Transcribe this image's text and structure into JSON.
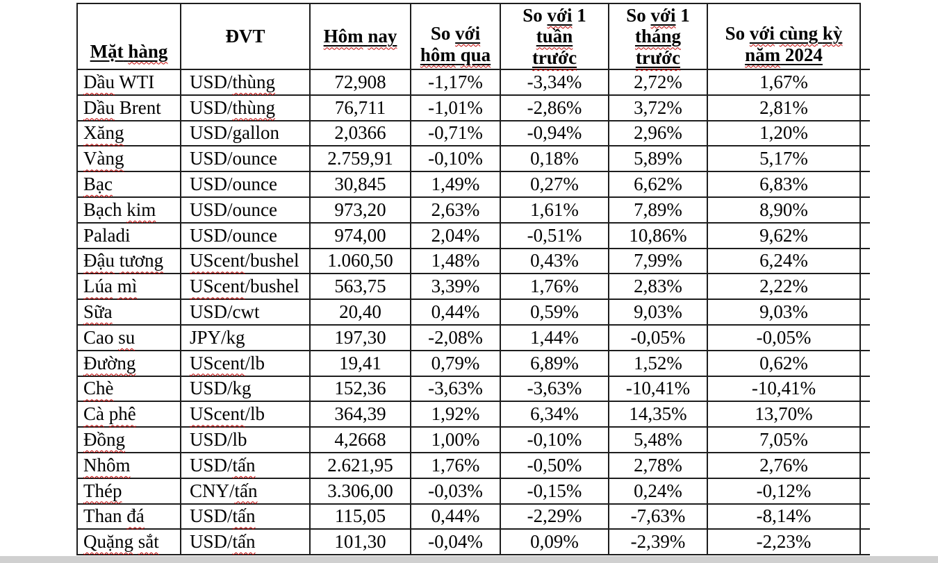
{
  "page": {
    "background": "#ffffff",
    "bottom_strip_color": "#d0d0d0",
    "table_border_color": "#1d1d1d",
    "squiggle_color": "#c00000",
    "text_color": "#000000"
  },
  "table": {
    "columns": [
      {
        "key": "commodity",
        "label": "Mặt hàng"
      },
      {
        "key": "unit",
        "label": "ĐVT"
      },
      {
        "key": "today",
        "label": "Hôm nay"
      },
      {
        "key": "vs_yesterday",
        "label": "So với hôm qua"
      },
      {
        "key": "vs_week",
        "label": "So với 1 tuần trước"
      },
      {
        "key": "vs_month",
        "label": "So với 1 tháng trước"
      },
      {
        "key": "vs_2024",
        "label": "So với cùng kỳ năm 2024"
      }
    ],
    "header_rich": [
      {
        "lines": [
          [
            {
              "t": "Mặt",
              "u": true
            },
            {
              "t": " ",
              "u": true
            },
            {
              "t": "hàng",
              "u": true,
              "w": true
            }
          ]
        ]
      },
      {
        "lines": [
          [
            {
              "t": "ĐVT"
            }
          ]
        ]
      },
      {
        "lines": [
          [
            {
              "t": "Hôm",
              "u": true,
              "w": true
            },
            {
              "t": " ",
              "u": true
            },
            {
              "t": "nay",
              "u": true,
              "w": true
            }
          ]
        ]
      },
      {
        "lines": [
          [
            {
              "t": "So "
            },
            {
              "t": "với",
              "u": true,
              "w": true
            }
          ],
          [
            {
              "t": "hôm",
              "u": true,
              "w": true
            },
            {
              "t": " ",
              "u": true
            },
            {
              "t": "qua",
              "u": true,
              "w": true
            }
          ]
        ]
      },
      {
        "lines": [
          [
            {
              "t": "So "
            },
            {
              "t": "với",
              "u": true,
              "w": true
            },
            {
              "t": " 1"
            }
          ],
          [
            {
              "t": "tuần",
              "u": true,
              "w": true
            }
          ],
          [
            {
              "t": "trước",
              "u": true,
              "w": true
            }
          ]
        ]
      },
      {
        "lines": [
          [
            {
              "t": "So "
            },
            {
              "t": "với",
              "u": true,
              "w": true
            },
            {
              "t": " 1"
            }
          ],
          [
            {
              "t": "tháng",
              "u": true,
              "w": true
            }
          ],
          [
            {
              "t": "trước",
              "u": true,
              "w": true
            }
          ]
        ]
      },
      {
        "lines": [
          [
            {
              "t": "So "
            },
            {
              "t": "với",
              "u": true,
              "w": true
            },
            {
              "t": " ",
              "u": true
            },
            {
              "t": "cùng",
              "u": true,
              "w": true
            },
            {
              "t": " ",
              "u": true
            },
            {
              "t": "kỳ",
              "u": true,
              "w": true
            }
          ],
          [
            {
              "t": "năm",
              "u": true,
              "w": true
            },
            {
              "t": " 2024",
              "u": true
            }
          ]
        ]
      }
    ],
    "rows": [
      {
        "c": "Dầu WTI",
        "cw": [
          "Dầu"
        ],
        "u": "USD/thùng",
        "uw": [
          "thùng"
        ],
        "v": [
          "72,908",
          "-1,17%",
          "-3,34%",
          "2,72%",
          "1,67%"
        ]
      },
      {
        "c": "Dầu Brent",
        "cw": [
          "Dầu"
        ],
        "u": "USD/thùng",
        "uw": [
          "thùng"
        ],
        "v": [
          "76,711",
          "-1,01%",
          "-2,86%",
          "3,72%",
          "2,81%"
        ]
      },
      {
        "c": "Xăng",
        "cw": [
          "Xăng"
        ],
        "u": "USD/gallon",
        "uw": [],
        "v": [
          "2,0366",
          "-0,71%",
          "-0,94%",
          "2,96%",
          "1,20%"
        ]
      },
      {
        "c": "Vàng",
        "cw": [
          "Vàng"
        ],
        "u": "USD/ounce",
        "uw": [],
        "v": [
          "2.759,91",
          "-0,10%",
          "0,18%",
          "5,89%",
          "5,17%"
        ]
      },
      {
        "c": "Bạc",
        "cw": [
          "Bạc"
        ],
        "u": "USD/ounce",
        "uw": [],
        "v": [
          "30,845",
          "1,49%",
          "0,27%",
          "6,62%",
          "6,83%"
        ]
      },
      {
        "c": "Bạch kim",
        "cw": [
          "kim"
        ],
        "u": "USD/ounce",
        "uw": [],
        "v": [
          "973,20",
          "2,63%",
          "1,61%",
          "7,89%",
          "8,90%"
        ]
      },
      {
        "c": "Paladi",
        "cw": [],
        "u": "USD/ounce",
        "uw": [],
        "v": [
          "974,00",
          "2,04%",
          "-0,51%",
          "10,86%",
          "9,62%"
        ]
      },
      {
        "c": "Đậu tương",
        "cw": [
          "Đậu",
          "tương"
        ],
        "u": "UScent/bushel",
        "uw": [
          "UScent"
        ],
        "v": [
          "1.060,50",
          "1,48%",
          "0,43%",
          "7,99%",
          "6,24%"
        ]
      },
      {
        "c": "Lúa mì",
        "cw": [
          "Lúa",
          "mì"
        ],
        "u": "UScent/bushel",
        "uw": [
          "UScent"
        ],
        "v": [
          "563,75",
          "3,39%",
          "1,76%",
          "2,83%",
          "2,22%"
        ]
      },
      {
        "c": "Sữa",
        "cw": [
          "Sữa"
        ],
        "u": "USD/cwt",
        "uw": [],
        "v": [
          "20,40",
          "0,44%",
          "0,59%",
          "9,03%",
          "9,03%"
        ]
      },
      {
        "c": "Cao su",
        "cw": [
          "su"
        ],
        "u": "JPY/kg",
        "uw": [],
        "v": [
          "197,30",
          "-2,08%",
          "1,44%",
          "-0,05%",
          "-0,05%"
        ]
      },
      {
        "c": "Đường",
        "cw": [
          "Đường"
        ],
        "u": "UScent/lb",
        "uw": [
          "UScent"
        ],
        "v": [
          "19,41",
          "0,79%",
          "6,89%",
          "1,52%",
          "0,62%"
        ]
      },
      {
        "c": "Chè",
        "cw": [
          "Chè"
        ],
        "u": "USD/kg",
        "uw": [],
        "v": [
          "152,36",
          "-3,63%",
          "-3,63%",
          "-10,41%",
          "-10,41%"
        ]
      },
      {
        "c": "Cà phê",
        "cw": [
          "Cà",
          "phê"
        ],
        "u": "UScent/lb",
        "uw": [
          "UScent"
        ],
        "v": [
          "364,39",
          "1,92%",
          "6,34%",
          "14,35%",
          "13,70%"
        ]
      },
      {
        "c": "Đồng",
        "cw": [
          "Đồng"
        ],
        "u": "USD/lb",
        "uw": [],
        "v": [
          "4,2668",
          "1,00%",
          "-0,10%",
          "5,48%",
          "7,05%"
        ]
      },
      {
        "c": "Nhôm",
        "cw": [
          "Nhôm"
        ],
        "u": "USD/tấn",
        "uw": [
          "tấn"
        ],
        "v": [
          "2.621,95",
          "1,76%",
          "-0,50%",
          "2,78%",
          "2,76%"
        ]
      },
      {
        "c": "Thép",
        "cw": [
          "Thép"
        ],
        "u": "CNY/tấn",
        "uw": [
          "tấn"
        ],
        "v": [
          "3.306,00",
          "-0,03%",
          "-0,15%",
          "0,24%",
          "-0,12%"
        ]
      },
      {
        "c": "Than đá",
        "cw": [
          "đá"
        ],
        "u": "USD/tấn",
        "uw": [
          "tấn"
        ],
        "v": [
          "115,05",
          "0,44%",
          "-2,29%",
          "-7,63%",
          "-8,14%"
        ]
      },
      {
        "c": "Quặng sắt",
        "cw": [
          "Quặng",
          "sắt"
        ],
        "u": "USD/tấn",
        "uw": [
          "tấn"
        ],
        "v": [
          "101,30",
          "-0,04%",
          "0,09%",
          "-2,39%",
          "-2,23%"
        ]
      }
    ]
  }
}
